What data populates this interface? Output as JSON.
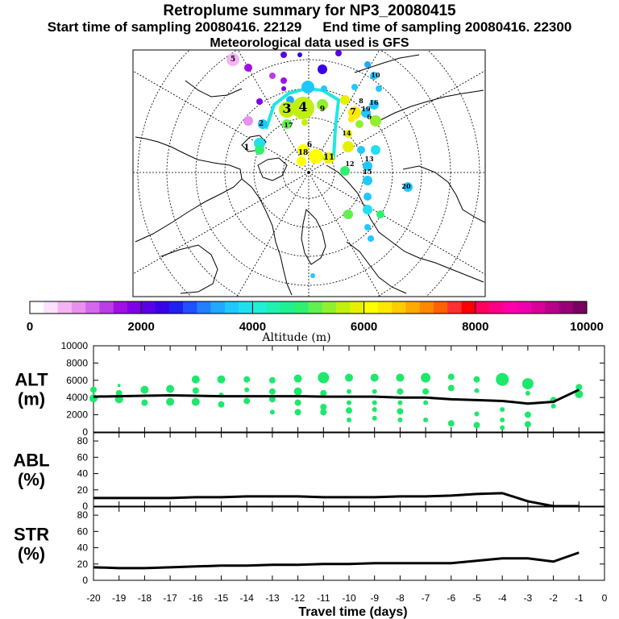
{
  "title": "Retroplume summary for NP3_20080415",
  "start_label": "Start time of sampling 20080416. 22129",
  "end_label": "End time of sampling 20080416. 22300",
  "met_label": "Meteorological data used is GFS",
  "colorbar": {
    "label": "Altitude (m)",
    "ticks": [
      "0",
      "2000",
      "4000",
      "6000",
      "8000",
      "10000"
    ],
    "colors": [
      "#ffffff",
      "#fce0fc",
      "#f4b4f4",
      "#e890f0",
      "#d468ec",
      "#bc3ce8",
      "#a010e4",
      "#7f00e8",
      "#5a00e6",
      "#3a00e8",
      "#2020f0",
      "#2050ff",
      "#2080ff",
      "#20a8ff",
      "#20c8ff",
      "#20e0f0",
      "#20f0d8",
      "#20f0b0",
      "#20f090",
      "#30f070",
      "#60f050",
      "#90f030",
      "#c0f010",
      "#e8f000",
      "#ffff00",
      "#ffe800",
      "#ffcc00",
      "#ffaa00",
      "#ff8800",
      "#ff6000",
      "#ff3030",
      "#ff0000",
      "#ff0060",
      "#ff0088",
      "#ff00a8",
      "#f000b0",
      "#d80098",
      "#b80088",
      "#980078",
      "#780060"
    ]
  },
  "map": {
    "labels": [
      "5",
      "10",
      "9",
      "1",
      "6",
      "6",
      "3",
      "4",
      "7",
      "8",
      "2",
      "12",
      "17",
      "16",
      "15",
      "14",
      "11",
      "19",
      "18",
      "13",
      "20"
    ]
  },
  "chart_data": [
    {
      "type": "scatter",
      "id": "alt",
      "ylabel": "ALT\n(m)",
      "ylabel_lines": [
        "ALT",
        "(m)"
      ],
      "ylim": [
        0,
        10000
      ],
      "yticks": [
        "0",
        "2000",
        "4000",
        "6000",
        "8000",
        "10000"
      ],
      "xlim": [
        -20,
        0
      ],
      "line": {
        "x": [
          -20,
          -19,
          -18,
          -17,
          -16,
          -15,
          -14,
          -13,
          -12,
          -11,
          -10,
          -9,
          -8,
          -7,
          -6,
          -5,
          -4,
          -3,
          -2,
          -1
        ],
        "y": [
          4100,
          4150,
          4200,
          4250,
          4200,
          4150,
          4150,
          4150,
          4150,
          4100,
          4100,
          4100,
          4000,
          4000,
          3800,
          3700,
          3600,
          3300,
          3500,
          4900
        ]
      },
      "points": [
        {
          "x": -20,
          "y": 4900,
          "s": 4
        },
        {
          "x": -20,
          "y": 3900,
          "s": 5
        },
        {
          "x": -19,
          "y": 5400,
          "s": 2
        },
        {
          "x": -19,
          "y": 4500,
          "s": 4
        },
        {
          "x": -19,
          "y": 3800,
          "s": 5
        },
        {
          "x": -18,
          "y": 4900,
          "s": 5
        },
        {
          "x": -18,
          "y": 3400,
          "s": 4
        },
        {
          "x": -17,
          "y": 5000,
          "s": 5
        },
        {
          "x": -17,
          "y": 3500,
          "s": 5
        },
        {
          "x": -16,
          "y": 6100,
          "s": 5
        },
        {
          "x": -16,
          "y": 4800,
          "s": 4
        },
        {
          "x": -16,
          "y": 3500,
          "s": 5
        },
        {
          "x": -15,
          "y": 6100,
          "s": 5
        },
        {
          "x": -15,
          "y": 4300,
          "s": 3
        },
        {
          "x": -15,
          "y": 3200,
          "s": 4
        },
        {
          "x": -14,
          "y": 6100,
          "s": 4
        },
        {
          "x": -14,
          "y": 4900,
          "s": 3
        },
        {
          "x": -14,
          "y": 3600,
          "s": 4
        },
        {
          "x": -13,
          "y": 6000,
          "s": 4
        },
        {
          "x": -13,
          "y": 4700,
          "s": 4
        },
        {
          "x": -13,
          "y": 3800,
          "s": 4
        },
        {
          "x": -13,
          "y": 2300,
          "s": 3
        },
        {
          "x": -12,
          "y": 6200,
          "s": 5
        },
        {
          "x": -12,
          "y": 4700,
          "s": 5
        },
        {
          "x": -12,
          "y": 3400,
          "s": 4
        },
        {
          "x": -12,
          "y": 2300,
          "s": 4
        },
        {
          "x": -11,
          "y": 6300,
          "s": 7
        },
        {
          "x": -11,
          "y": 4500,
          "s": 4
        },
        {
          "x": -11,
          "y": 2900,
          "s": 4
        },
        {
          "x": -11,
          "y": 2300,
          "s": 4
        },
        {
          "x": -10,
          "y": 6300,
          "s": 5
        },
        {
          "x": -10,
          "y": 4700,
          "s": 3
        },
        {
          "x": -10,
          "y": 3400,
          "s": 3
        },
        {
          "x": -10,
          "y": 2500,
          "s": 4
        },
        {
          "x": -10,
          "y": 1400,
          "s": 3
        },
        {
          "x": -9,
          "y": 6300,
          "s": 5
        },
        {
          "x": -9,
          "y": 4700,
          "s": 3
        },
        {
          "x": -9,
          "y": 3400,
          "s": 3
        },
        {
          "x": -9,
          "y": 2600,
          "s": 3
        },
        {
          "x": -9,
          "y": 1600,
          "s": 3
        },
        {
          "x": -8,
          "y": 6300,
          "s": 5
        },
        {
          "x": -8,
          "y": 4700,
          "s": 4
        },
        {
          "x": -8,
          "y": 3400,
          "s": 3
        },
        {
          "x": -8,
          "y": 2400,
          "s": 4
        },
        {
          "x": -8,
          "y": 1400,
          "s": 3
        },
        {
          "x": -7,
          "y": 6300,
          "s": 6
        },
        {
          "x": -7,
          "y": 4700,
          "s": 4
        },
        {
          "x": -7,
          "y": 3400,
          "s": 3
        },
        {
          "x": -7,
          "y": 1400,
          "s": 3
        },
        {
          "x": -6,
          "y": 6400,
          "s": 4
        },
        {
          "x": -6,
          "y": 5100,
          "s": 4
        },
        {
          "x": -6,
          "y": 1000,
          "s": 4
        },
        {
          "x": -5,
          "y": 6100,
          "s": 4
        },
        {
          "x": -5,
          "y": 4800,
          "s": 3
        },
        {
          "x": -5,
          "y": 2100,
          "s": 3
        },
        {
          "x": -5,
          "y": 800,
          "s": 4
        },
        {
          "x": -4,
          "y": 6100,
          "s": 8
        },
        {
          "x": -4,
          "y": 2600,
          "s": 3
        },
        {
          "x": -4,
          "y": 1400,
          "s": 3
        },
        {
          "x": -4,
          "y": 500,
          "s": 3
        },
        {
          "x": -3,
          "y": 5600,
          "s": 7
        },
        {
          "x": -3,
          "y": 4500,
          "s": 3
        },
        {
          "x": -3,
          "y": 2000,
          "s": 4
        },
        {
          "x": -3,
          "y": 900,
          "s": 4
        },
        {
          "x": -2,
          "y": 3700,
          "s": 4
        },
        {
          "x": -2,
          "y": 3000,
          "s": 3
        },
        {
          "x": -1,
          "y": 5200,
          "s": 4
        },
        {
          "x": -1,
          "y": 4400,
          "s": 5
        }
      ]
    },
    {
      "type": "line",
      "id": "abl",
      "ylabel": "ABL\n(%)",
      "ylabel_lines": [
        "ABL",
        "(%)"
      ],
      "ylim": [
        0,
        90
      ],
      "yticks": [
        "0",
        "20",
        "40",
        "60",
        "80"
      ],
      "xlim": [
        -20,
        0
      ],
      "x": [
        -20,
        -19,
        -18,
        -17,
        -16,
        -15,
        -14,
        -13,
        -12,
        -11,
        -10,
        -9,
        -8,
        -7,
        -6,
        -5,
        -4,
        -3,
        -2,
        -1
      ],
      "y": [
        10,
        10,
        10,
        10,
        11,
        11,
        12,
        12,
        12,
        11,
        11,
        11,
        12,
        12,
        13,
        15,
        16,
        6,
        0,
        0
      ]
    },
    {
      "type": "line",
      "id": "str",
      "ylabel": "STR\n(%)",
      "ylabel_lines": [
        "STR",
        "(%)"
      ],
      "ylim": [
        0,
        90
      ],
      "yticks": [
        "0",
        "20",
        "40",
        "60",
        "80"
      ],
      "xlim": [
        -20,
        0
      ],
      "x": [
        -20,
        -19,
        -18,
        -17,
        -16,
        -15,
        -14,
        -13,
        -12,
        -11,
        -10,
        -9,
        -8,
        -7,
        -6,
        -5,
        -4,
        -3,
        -2,
        -1
      ],
      "y": [
        16,
        15,
        15,
        16,
        17,
        18,
        18,
        19,
        19,
        20,
        20,
        21,
        21,
        21,
        21,
        24,
        27,
        27,
        23,
        34
      ],
      "xlabel": "Travel time (days)",
      "xticks": [
        "-20",
        "-19",
        "-18",
        "-17",
        "-16",
        "-15",
        "-14",
        "-13",
        "-12",
        "-11",
        "-10",
        "-9",
        "-8",
        "-7",
        "-6",
        "-5",
        "-4",
        "-3",
        "-2",
        "-1",
        "0"
      ]
    }
  ]
}
